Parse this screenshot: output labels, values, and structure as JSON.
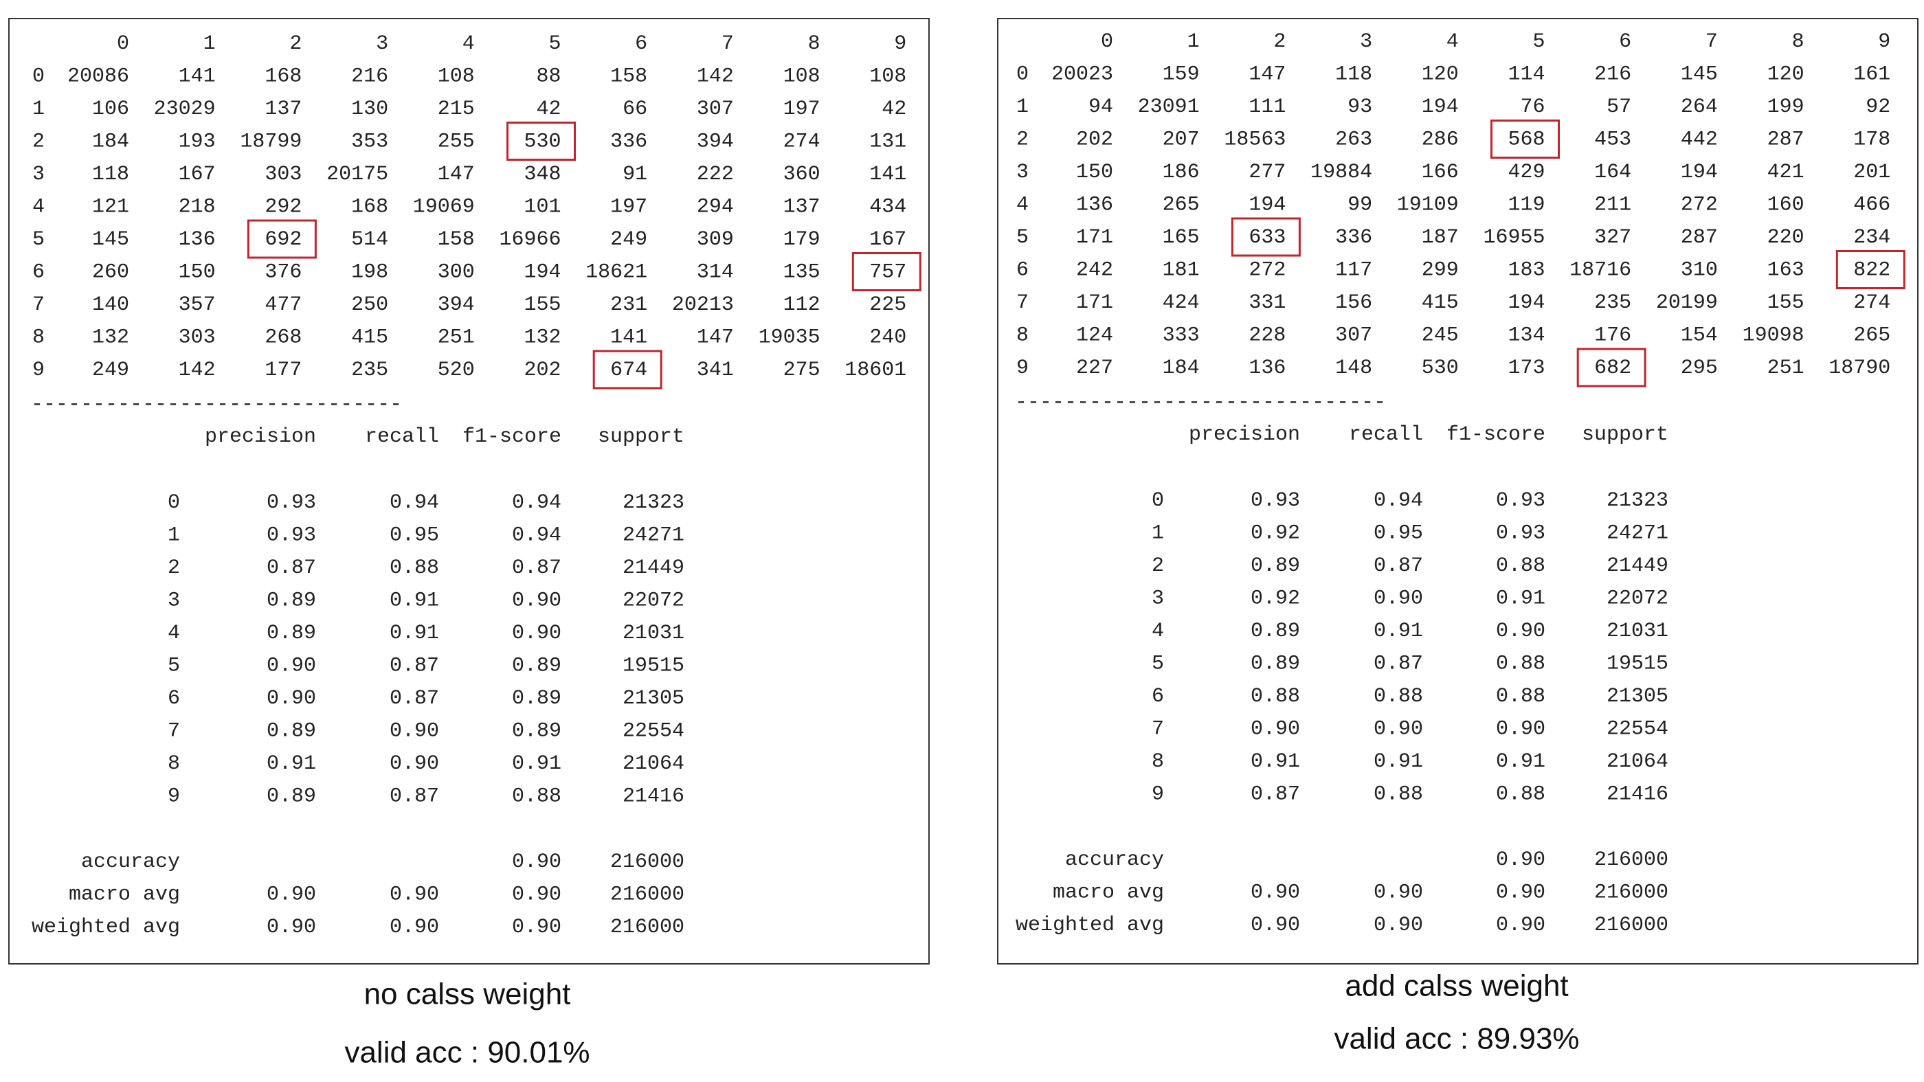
{
  "panels": [
    {
      "matrix": {
        "columns": [
          "0",
          "1",
          "2",
          "3",
          "4",
          "5",
          "6",
          "7",
          "8",
          "9"
        ],
        "rows": [
          {
            "label": "0",
            "cells": [
              "20086",
              "141",
              "168",
              "216",
              "108",
              "88",
              "158",
              "142",
              "108",
              "108"
            ]
          },
          {
            "label": "1",
            "cells": [
              "106",
              "23029",
              "137",
              "130",
              "215",
              "42",
              "66",
              "307",
              "197",
              "42"
            ]
          },
          {
            "label": "2",
            "cells": [
              "184",
              "193",
              "18799",
              "353",
              "255",
              "530",
              "336",
              "394",
              "274",
              "131"
            ]
          },
          {
            "label": "3",
            "cells": [
              "118",
              "167",
              "303",
              "20175",
              "147",
              "348",
              "91",
              "222",
              "360",
              "141"
            ]
          },
          {
            "label": "4",
            "cells": [
              "121",
              "218",
              "292",
              "168",
              "19069",
              "101",
              "197",
              "294",
              "137",
              "434"
            ]
          },
          {
            "label": "5",
            "cells": [
              "145",
              "136",
              "692",
              "514",
              "158",
              "16966",
              "249",
              "309",
              "179",
              "167"
            ]
          },
          {
            "label": "6",
            "cells": [
              "260",
              "150",
              "376",
              "198",
              "300",
              "194",
              "18621",
              "314",
              "135",
              "757"
            ]
          },
          {
            "label": "7",
            "cells": [
              "140",
              "357",
              "477",
              "250",
              "394",
              "155",
              "231",
              "20213",
              "112",
              "225"
            ]
          },
          {
            "label": "8",
            "cells": [
              "132",
              "303",
              "268",
              "415",
              "251",
              "132",
              "141",
              "147",
              "19035",
              "240"
            ]
          },
          {
            "label": "9",
            "cells": [
              "249",
              "142",
              "177",
              "235",
              "520",
              "202",
              "674",
              "341",
              "275",
              "18601"
            ]
          }
        ],
        "boxed": [
          [
            2,
            5
          ],
          [
            5,
            2
          ],
          [
            6,
            9
          ],
          [
            9,
            6
          ]
        ]
      },
      "separator": "------------------------------",
      "report": {
        "columns": [
          "precision",
          "recall",
          "f1-score",
          "support"
        ],
        "rows": [
          {
            "label": "0",
            "cells": [
              "0.93",
              "0.94",
              "0.94",
              "21323"
            ]
          },
          {
            "label": "1",
            "cells": [
              "0.93",
              "0.95",
              "0.94",
              "24271"
            ]
          },
          {
            "label": "2",
            "cells": [
              "0.87",
              "0.88",
              "0.87",
              "21449"
            ]
          },
          {
            "label": "3",
            "cells": [
              "0.89",
              "0.91",
              "0.90",
              "22072"
            ]
          },
          {
            "label": "4",
            "cells": [
              "0.89",
              "0.91",
              "0.90",
              "21031"
            ]
          },
          {
            "label": "5",
            "cells": [
              "0.90",
              "0.87",
              "0.89",
              "19515"
            ]
          },
          {
            "label": "6",
            "cells": [
              "0.90",
              "0.87",
              "0.89",
              "21305"
            ]
          },
          {
            "label": "7",
            "cells": [
              "0.89",
              "0.90",
              "0.89",
              "22554"
            ]
          },
          {
            "label": "8",
            "cells": [
              "0.91",
              "0.90",
              "0.91",
              "21064"
            ]
          },
          {
            "label": "9",
            "cells": [
              "0.89",
              "0.87",
              "0.88",
              "21416"
            ]
          }
        ],
        "summary": [
          {
            "label": "accuracy",
            "cells": [
              "0.90",
              "216000"
            ]
          },
          {
            "label": "macro avg",
            "cells": [
              "0.90",
              "0.90",
              "0.90",
              "216000"
            ]
          },
          {
            "label": "weighted avg",
            "cells": [
              "0.90",
              "0.90",
              "0.90",
              "216000"
            ]
          }
        ]
      },
      "caption": [
        "no calss weight",
        "valid acc : 90.01%"
      ]
    },
    {
      "matrix": {
        "columns": [
          "0",
          "1",
          "2",
          "3",
          "4",
          "5",
          "6",
          "7",
          "8",
          "9"
        ],
        "rows": [
          {
            "label": "0",
            "cells": [
              "20023",
              "159",
              "147",
              "118",
              "120",
              "114",
              "216",
              "145",
              "120",
              "161"
            ]
          },
          {
            "label": "1",
            "cells": [
              "94",
              "23091",
              "111",
              "93",
              "194",
              "76",
              "57",
              "264",
              "199",
              "92"
            ]
          },
          {
            "label": "2",
            "cells": [
              "202",
              "207",
              "18563",
              "263",
              "286",
              "568",
              "453",
              "442",
              "287",
              "178"
            ]
          },
          {
            "label": "3",
            "cells": [
              "150",
              "186",
              "277",
              "19884",
              "166",
              "429",
              "164",
              "194",
              "421",
              "201"
            ]
          },
          {
            "label": "4",
            "cells": [
              "136",
              "265",
              "194",
              "99",
              "19109",
              "119",
              "211",
              "272",
              "160",
              "466"
            ]
          },
          {
            "label": "5",
            "cells": [
              "171",
              "165",
              "633",
              "336",
              "187",
              "16955",
              "327",
              "287",
              "220",
              "234"
            ]
          },
          {
            "label": "6",
            "cells": [
              "242",
              "181",
              "272",
              "117",
              "299",
              "183",
              "18716",
              "310",
              "163",
              "822"
            ]
          },
          {
            "label": "7",
            "cells": [
              "171",
              "424",
              "331",
              "156",
              "415",
              "194",
              "235",
              "20199",
              "155",
              "274"
            ]
          },
          {
            "label": "8",
            "cells": [
              "124",
              "333",
              "228",
              "307",
              "245",
              "134",
              "176",
              "154",
              "19098",
              "265"
            ]
          },
          {
            "label": "9",
            "cells": [
              "227",
              "184",
              "136",
              "148",
              "530",
              "173",
              "682",
              "295",
              "251",
              "18790"
            ]
          }
        ],
        "boxed": [
          [
            2,
            5
          ],
          [
            5,
            2
          ],
          [
            6,
            9
          ],
          [
            9,
            6
          ]
        ]
      },
      "separator": "------------------------------",
      "report": {
        "columns": [
          "precision",
          "recall",
          "f1-score",
          "support"
        ],
        "rows": [
          {
            "label": "0",
            "cells": [
              "0.93",
              "0.94",
              "0.93",
              "21323"
            ]
          },
          {
            "label": "1",
            "cells": [
              "0.92",
              "0.95",
              "0.93",
              "24271"
            ]
          },
          {
            "label": "2",
            "cells": [
              "0.89",
              "0.87",
              "0.88",
              "21449"
            ]
          },
          {
            "label": "3",
            "cells": [
              "0.92",
              "0.90",
              "0.91",
              "22072"
            ]
          },
          {
            "label": "4",
            "cells": [
              "0.89",
              "0.91",
              "0.90",
              "21031"
            ]
          },
          {
            "label": "5",
            "cells": [
              "0.89",
              "0.87",
              "0.88",
              "19515"
            ]
          },
          {
            "label": "6",
            "cells": [
              "0.88",
              "0.88",
              "0.88",
              "21305"
            ]
          },
          {
            "label": "7",
            "cells": [
              "0.90",
              "0.90",
              "0.90",
              "22554"
            ]
          },
          {
            "label": "8",
            "cells": [
              "0.91",
              "0.91",
              "0.91",
              "21064"
            ]
          },
          {
            "label": "9",
            "cells": [
              "0.87",
              "0.88",
              "0.88",
              "21416"
            ]
          }
        ],
        "summary": [
          {
            "label": "accuracy",
            "cells": [
              "0.90",
              "216000"
            ]
          },
          {
            "label": "macro avg",
            "cells": [
              "0.90",
              "0.90",
              "0.90",
              "216000"
            ]
          },
          {
            "label": "weighted avg",
            "cells": [
              "0.90",
              "0.90",
              "0.90",
              "216000"
            ]
          }
        ]
      },
      "caption": [
        "add calss weight",
        "valid acc : 89.93%"
      ]
    }
  ]
}
